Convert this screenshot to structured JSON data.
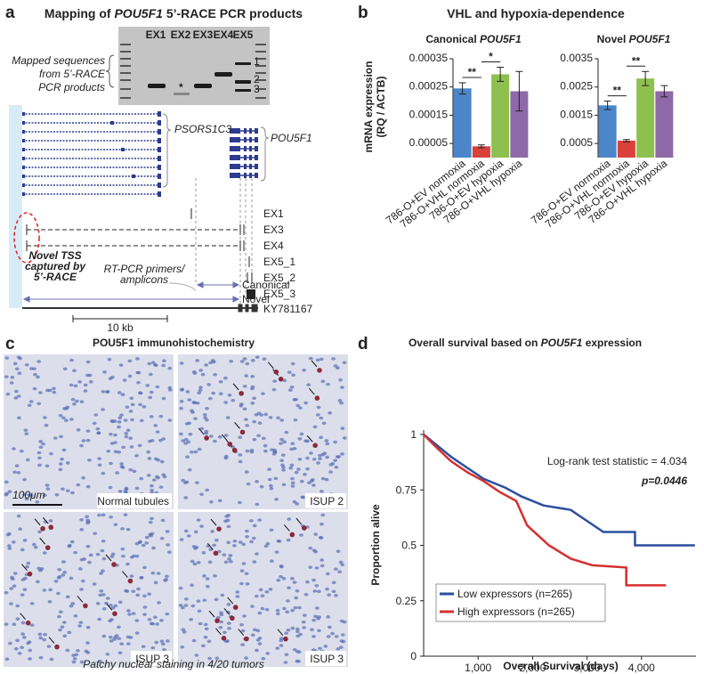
{
  "panel_a": {
    "label": "a",
    "title": [
      "Mapping of ",
      "POU5F1",
      " 5’-RACE PCR products"
    ],
    "gel_lanes": [
      "EX1",
      "EX2",
      "EX3",
      "EX4",
      "EX5"
    ],
    "band_labels": [
      "1",
      "2",
      "3"
    ],
    "star": "*",
    "mapped_label": [
      "Mapped sequences",
      "from 5’-RACE",
      "PCR products"
    ],
    "genes": [
      "PSORS1C3",
      "POU5F1"
    ],
    "tracks": [
      "EX1",
      "EX3",
      "EX4",
      "EX5_1",
      "EX5_2",
      "EX5_3"
    ],
    "novel_tss": [
      "Novel TSS",
      "captured by",
      "5’-RACE"
    ],
    "primers": [
      "RT-PCR primers/",
      "amplicons"
    ],
    "amplicons": [
      "Canonical",
      "Novel"
    ],
    "reference": "KY781167",
    "scale": "10 kb"
  },
  "panel_b": {
    "label": "b",
    "title": "VHL and hypoxia-dependence",
    "y_label": [
      "mRNA expression",
      "(RQ / ACTB)"
    ]
  },
  "panel_c": {
    "label": "c",
    "title": "POU5F1 immunohistochemistry",
    "scale": "100μm",
    "images": [
      "Normal tubules",
      "ISUP 2",
      "ISUP 3",
      "ISUP 3"
    ],
    "caption": "Patchy nuclear staining in 4/20 tumors"
  },
  "panel_d": {
    "label": "d"
  },
  "chart_data": [
    {
      "type": "bar",
      "title": [
        "Canonical ",
        "POU5F1"
      ],
      "categories": [
        "786-O+EV normoxia",
        "786-O+VHL normoxia",
        "786-O+EV hypoxia",
        "786-O+VHL hypoxia"
      ],
      "values": [
        0.000245,
        4e-05,
        0.000295,
        0.000235
      ],
      "errors": [
        2e-05,
        5e-06,
        2.5e-05,
        7e-05
      ],
      "colors": [
        "#4a86c8",
        "#d9413a",
        "#8dc04f",
        "#8e68a8"
      ],
      "annotations": [
        "**",
        "*"
      ],
      "ylim": [
        0,
        0.00035
      ],
      "yticks": [
        5e-05,
        0.00015,
        0.00025,
        0.00035
      ]
    },
    {
      "type": "bar",
      "title": [
        "Novel ",
        "POU5F1"
      ],
      "categories": [
        "786-O+EV normoxia",
        "786-O+VHL normoxia",
        "786-O+EV hypoxia",
        "786-O+VHL hypoxia"
      ],
      "values": [
        0.00185,
        0.0006,
        0.0028,
        0.00235
      ],
      "errors": [
        0.00015,
        4e-05,
        0.00025,
        0.0002
      ],
      "colors": [
        "#4a86c8",
        "#d9413a",
        "#8dc04f",
        "#8e68a8"
      ],
      "annotations": [
        "**",
        "**"
      ],
      "ylim": [
        0,
        0.0035
      ],
      "yticks": [
        0.0005,
        0.0015,
        0.0025,
        0.0035
      ]
    },
    {
      "type": "line",
      "title": [
        "Overall survival based on ",
        "POU5F1",
        " expression"
      ],
      "x_label": "Overall Survival (days)",
      "y_label": "Proportion alive",
      "annotations": [
        "Log-rank test statistic = 4.034",
        "p=0.0446"
      ],
      "xlim": [
        0,
        5000
      ],
      "xticks": [
        {
          "value": 1000,
          "label": "1,000"
        },
        {
          "value": 2000,
          "label": "2,000"
        },
        {
          "value": 3000,
          "label": "3,000"
        },
        {
          "value": 4000,
          "label": "4,000"
        }
      ],
      "ylim": [
        0,
        1
      ],
      "yticks": [
        0,
        0.25,
        0.5,
        0.75,
        1
      ],
      "series": [
        {
          "name": "Low expressors (n=265)",
          "color": "#2b4fa0",
          "x": [
            0,
            200,
            500,
            800,
            1100,
            1500,
            1800,
            2200,
            2700,
            3000,
            3300,
            3880,
            3880,
            4980
          ],
          "values": [
            1,
            0.96,
            0.9,
            0.85,
            0.8,
            0.76,
            0.72,
            0.68,
            0.66,
            0.61,
            0.56,
            0.56,
            0.5,
            0.5
          ]
        },
        {
          "name": "High expressors (n=265)",
          "color": "#d62f2f",
          "x": [
            0,
            200,
            500,
            800,
            1100,
            1400,
            1700,
            1900,
            2300,
            2700,
            3100,
            3720,
            3720,
            4450
          ],
          "values": [
            1,
            0.95,
            0.88,
            0.83,
            0.79,
            0.74,
            0.7,
            0.59,
            0.5,
            0.44,
            0.41,
            0.4,
            0.32,
            0.32
          ]
        }
      ]
    }
  ]
}
